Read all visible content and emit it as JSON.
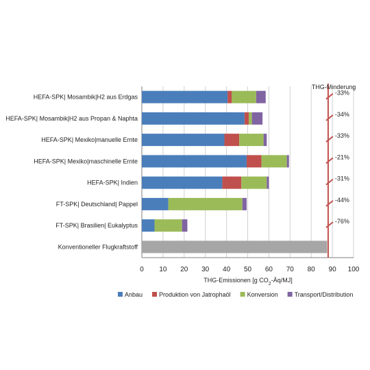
{
  "chart_data": {
    "type": "bar",
    "orientation": "horizontal",
    "stacked": true,
    "categories": [
      "HEFA-SPK| Mosambik|H2 aus Erdgas",
      "HEFA-SPK| Mosambik|H2 aus Propan & Naphta",
      "HEFA-SPK| Mexiko|manuelle Ernte",
      "HEFA-SPK| Mexiko|maschinelle Ernte",
      "HEFA-SPK| Indien",
      "FT-SPK| Deutschland| Pappel",
      "FT-SPK| Brasilien| Eukalyptus",
      "Konventioneller Flugkraftstoff"
    ],
    "series": [
      {
        "name": "Anbau",
        "color": "#4a7ebb",
        "values": [
          40.5,
          48.5,
          39,
          49.5,
          38,
          12.5,
          6,
          0
        ]
      },
      {
        "name": "Produktion von Jatrophaöl",
        "color": "#c0504d",
        "values": [
          2,
          2,
          7,
          7,
          9,
          0,
          0,
          0
        ]
      },
      {
        "name": "Konversion",
        "color": "#9bbb59",
        "values": [
          11.5,
          1.5,
          11.5,
          12,
          12,
          35,
          13,
          0
        ]
      },
      {
        "name": "Transport/Distribution",
        "color": "#8064a2",
        "values": [
          4.5,
          5,
          1.5,
          1,
          1,
          2,
          2.5,
          0
        ]
      }
    ],
    "reference": {
      "category": "Konventioneller Flugkraftstoff",
      "value": 87.5,
      "color": "#a6a6a6"
    },
    "threshold_line": {
      "value": 88,
      "color": "#c0504d"
    },
    "reduction_header": "THG-Minderung",
    "reductions": [
      "-33%",
      "-34%",
      "-33%",
      "-21%",
      "-31%",
      "-44%",
      "-76%"
    ],
    "xlabel_main": "THG-Emissionen [g CO",
    "xlabel_sub": "2",
    "xlabel_tail": "-Äq/MJ]",
    "xlim": [
      0,
      100
    ],
    "xticks": [
      0,
      10,
      20,
      30,
      40,
      50,
      60,
      70,
      80,
      90,
      100
    ],
    "grid": true,
    "legend_position": "bottom"
  }
}
